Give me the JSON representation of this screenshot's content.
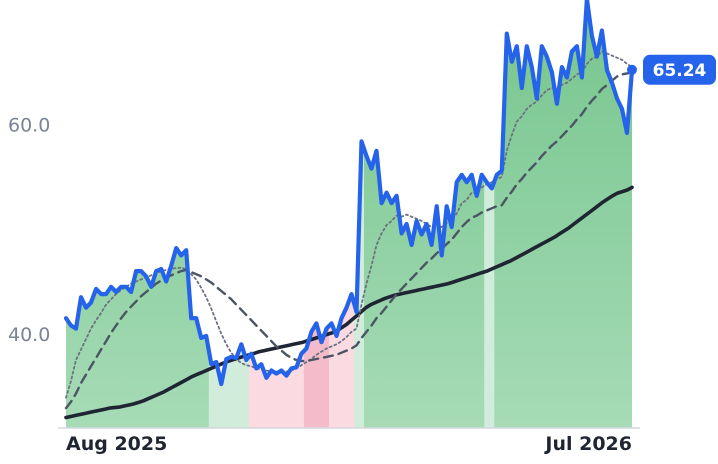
{
  "chart_data": {
    "type": "line",
    "title": "",
    "xlabel": "",
    "ylabel": "",
    "x_range": [
      "Aug 2025",
      "Jul 2026"
    ],
    "x_tick_labels": [
      "Aug 2025",
      "Jul 2026"
    ],
    "y_tick_values": [
      40.0,
      60.0
    ],
    "y_tick_labels": [
      "40.0",
      "60.0"
    ],
    "ylim": [
      31.0,
      70.0
    ],
    "grid": false,
    "legend": "none",
    "last_value_label": "65.24",
    "colors": {
      "price": "#2563eb",
      "ma_dotted": "#6b7280",
      "ma_dashed": "#4b5563",
      "ma_long": "#1f2533",
      "area_green": "#7dc994",
      "area_green_light": "#d2ecdb",
      "area_pink": "#fbdbe1",
      "area_pink_dark": "#f4bccb",
      "axis": "#d4d8de"
    },
    "series": [
      {
        "name": "",
        "style": "solid-thick",
        "values": [
          41.5,
          40.8,
          40.5,
          43.5,
          42.5,
          43.0,
          44.3,
          43.8,
          43.8,
          44.5,
          44.0,
          44.5,
          44.5,
          44.0,
          46.0,
          46.0,
          45.5,
          44.5,
          46.0,
          46.2,
          45.0,
          46.5,
          48.2,
          47.5,
          48.0,
          41.5,
          41.5,
          39.6,
          39.8,
          37.1,
          37.3,
          35.2,
          37.6,
          37.8,
          37.7,
          39.0,
          37.5,
          38.1,
          36.7,
          37.1,
          35.8,
          36.5,
          36.2,
          36.5,
          36.0,
          36.7,
          36.8,
          38.1,
          38.6,
          40.2,
          41.0,
          39.2,
          40.5,
          41.0,
          39.8,
          41.5,
          42.5,
          43.8,
          42.1,
          58.4,
          57.0,
          55.8,
          57.5,
          52.5,
          53.5,
          52.5,
          53.2,
          49.6,
          50.5,
          48.5,
          50.8,
          49.5,
          50.5,
          48.5,
          52.2,
          47.5,
          52.2,
          50.2,
          54.5,
          55.2,
          54.5,
          55.2,
          53.2,
          55.2,
          54.5,
          53.9,
          55.2,
          55.6,
          68.7,
          66.0,
          67.5,
          63.5,
          67.5,
          65.5,
          62.5,
          67.5,
          66.5,
          65.0,
          62.0,
          65.5,
          64.5,
          67.0,
          67.5,
          64.5,
          72.0,
          68.5,
          66.5,
          69.0,
          65.2,
          64.0,
          62.5,
          61.5,
          59.2,
          65.24
        ]
      },
      {
        "name": "",
        "style": "dotted",
        "values": [
          33.9,
          35.5,
          37.5,
          38.5,
          39.5,
          40.5,
          41.3,
          42.0,
          42.8,
          43.3,
          43.8,
          44.2,
          44.5,
          44.8,
          45.0,
          45.2,
          45.4,
          45.6,
          45.8,
          46.0,
          46.1,
          46.2,
          46.3,
          46.3,
          46.2,
          45.7,
          45.2,
          44.4,
          43.5,
          42.4,
          41.2,
          40.0,
          39.0,
          38.2,
          37.6,
          37.2,
          37.0,
          36.9,
          36.7,
          36.6,
          36.5,
          36.4,
          36.4,
          36.4,
          36.4,
          36.5,
          36.7,
          37.0,
          37.3,
          37.6,
          38.0,
          38.3,
          38.6,
          38.8,
          39.0,
          39.3,
          39.7,
          40.2,
          40.5,
          42.8,
          44.8,
          46.5,
          48.5,
          49.6,
          50.4,
          50.8,
          51.3,
          51.2,
          51.4,
          51.2,
          51.0,
          50.8,
          50.5,
          50.2,
          50.5,
          50.2,
          50.6,
          50.8,
          51.5,
          52.5,
          52.8,
          53.5,
          53.5,
          54.0,
          54.3,
          54.5,
          54.8,
          55.0,
          57.5,
          59.0,
          60.3,
          60.8,
          61.5,
          61.9,
          62.2,
          62.8,
          63.3,
          63.5,
          63.4,
          63.8,
          64.0,
          64.4,
          64.8,
          65.0,
          65.8,
          66.3,
          66.5,
          67.0,
          66.8,
          66.6,
          66.4,
          66.2,
          65.8,
          65.5
        ]
      },
      {
        "name": "",
        "style": "dashed",
        "values": [
          32.9,
          33.5,
          34.3,
          35.3,
          36.1,
          36.9,
          37.7,
          38.5,
          39.3,
          40.1,
          40.8,
          41.5,
          42.1,
          42.6,
          43.1,
          43.6,
          44.0,
          44.4,
          44.8,
          45.1,
          45.4,
          45.6,
          45.8,
          46.0,
          46.1,
          45.9,
          45.7,
          45.5,
          45.2,
          44.9,
          44.5,
          44.1,
          43.7,
          43.3,
          42.8,
          42.3,
          41.8,
          41.3,
          40.8,
          40.3,
          39.8,
          39.3,
          38.8,
          38.4,
          38.0,
          37.7,
          37.5,
          37.4,
          37.4,
          37.5,
          37.6,
          37.7,
          37.8,
          37.9,
          38.0,
          38.2,
          38.4,
          38.6,
          38.9,
          39.6,
          40.2,
          40.8,
          41.5,
          42.0,
          42.6,
          43.2,
          43.8,
          44.3,
          44.8,
          45.3,
          45.8,
          46.3,
          46.8,
          47.2,
          47.7,
          48.1,
          48.6,
          49.0,
          49.6,
          50.2,
          50.7,
          51.1,
          51.3,
          51.6,
          51.8,
          52.0,
          52.2,
          52.3,
          53.0,
          53.6,
          54.3,
          54.8,
          55.4,
          55.9,
          56.4,
          57.0,
          57.5,
          58.0,
          58.4,
          58.9,
          59.4,
          59.9,
          60.5,
          61.0,
          61.7,
          62.3,
          62.8,
          63.4,
          63.8,
          64.2,
          64.6,
          64.8,
          64.9,
          65.0
        ]
      },
      {
        "name": "",
        "style": "solid-long",
        "values": [
          32.0,
          32.1,
          32.2,
          32.3,
          32.4,
          32.5,
          32.6,
          32.7,
          32.8,
          32.9,
          32.95,
          33.0,
          33.1,
          33.2,
          33.3,
          33.45,
          33.6,
          33.8,
          34.0,
          34.2,
          34.4,
          34.65,
          34.9,
          35.15,
          35.4,
          35.65,
          35.9,
          36.1,
          36.3,
          36.5,
          36.7,
          36.9,
          37.1,
          37.3,
          37.45,
          37.6,
          37.75,
          37.9,
          38.0,
          38.15,
          38.3,
          38.4,
          38.5,
          38.6,
          38.7,
          38.8,
          38.9,
          39.0,
          39.1,
          39.2,
          39.35,
          39.5,
          39.65,
          39.8,
          39.95,
          40.1,
          40.3,
          40.6,
          40.9,
          41.3,
          41.7,
          42.1,
          42.5,
          42.8,
          43.0,
          43.2,
          43.4,
          43.55,
          43.7,
          43.8,
          43.9,
          44.0,
          44.1,
          44.2,
          44.3,
          44.4,
          44.5,
          44.6,
          44.7,
          44.8,
          44.95,
          45.1,
          45.25,
          45.4,
          45.55,
          45.7,
          45.85,
          46.0,
          46.2,
          46.4,
          46.6,
          46.8,
          47.0,
          47.25,
          47.5,
          47.75,
          48.0,
          48.25,
          48.5,
          48.75,
          49.0,
          49.25,
          49.55,
          49.85,
          50.15,
          50.5,
          50.85,
          51.2,
          51.55,
          51.9,
          52.25,
          52.6,
          52.9,
          53.2,
          53.45,
          53.6,
          53.75,
          54.0
        ]
      }
    ]
  }
}
